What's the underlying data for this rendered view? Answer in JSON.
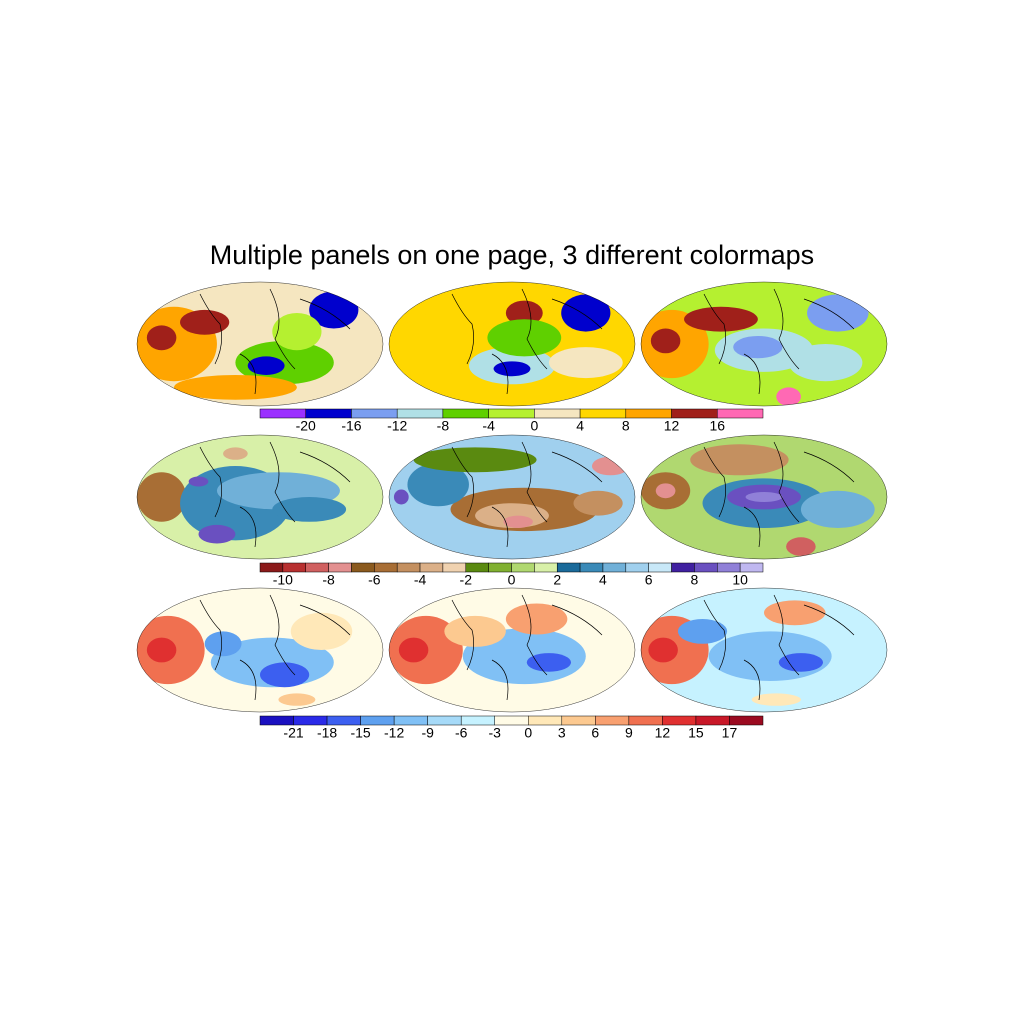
{
  "title": "Multiple panels on one page, 3 different colormaps",
  "rows": [
    {
      "colorbar": {
        "colors": [
          "#9b30ff",
          "#0000cd",
          "#7b9ef0",
          "#b0e0e6",
          "#5fd000",
          "#b5f030",
          "#f5e6c0",
          "#ffd700",
          "#ffa500",
          "#a0201a",
          "#ff69b4"
        ],
        "ticks": [
          -20,
          -16,
          -12,
          -8,
          -4,
          0,
          4,
          8,
          12,
          16
        ]
      }
    },
    {
      "colorbar": {
        "colors": [
          "#8b1a1a",
          "#b83030",
          "#d06060",
          "#e39090",
          "#8b5a1e",
          "#a86e35",
          "#c49060",
          "#dbb088",
          "#f0d2b0",
          "#5a8a10",
          "#80b030",
          "#b0d870",
          "#d8f0a8",
          "#1a6a9a",
          "#3a8ab8",
          "#70b0d8",
          "#a0d0ee",
          "#c8e8f8",
          "#4020a0",
          "#6a50c0",
          "#9080d8",
          "#c0b8f0"
        ],
        "ticks": [
          -10,
          -8,
          -6,
          -4,
          -2,
          0,
          2,
          4,
          6,
          8,
          10
        ]
      }
    },
    {
      "colorbar": {
        "colors": [
          "#1a10c0",
          "#2a2ae8",
          "#3c5ff0",
          "#5ea0ef",
          "#80c0f5",
          "#a6daf8",
          "#c6f2ff",
          "#fffbe6",
          "#ffe8b8",
          "#fcc990",
          "#f8a070",
          "#f07050",
          "#e03030",
          "#c81828",
          "#9b0a20"
        ],
        "ticks": [
          -21,
          -18,
          -15,
          -12,
          -9,
          -6,
          -3,
          0,
          3,
          6,
          9,
          12,
          15,
          17
        ]
      }
    }
  ]
}
